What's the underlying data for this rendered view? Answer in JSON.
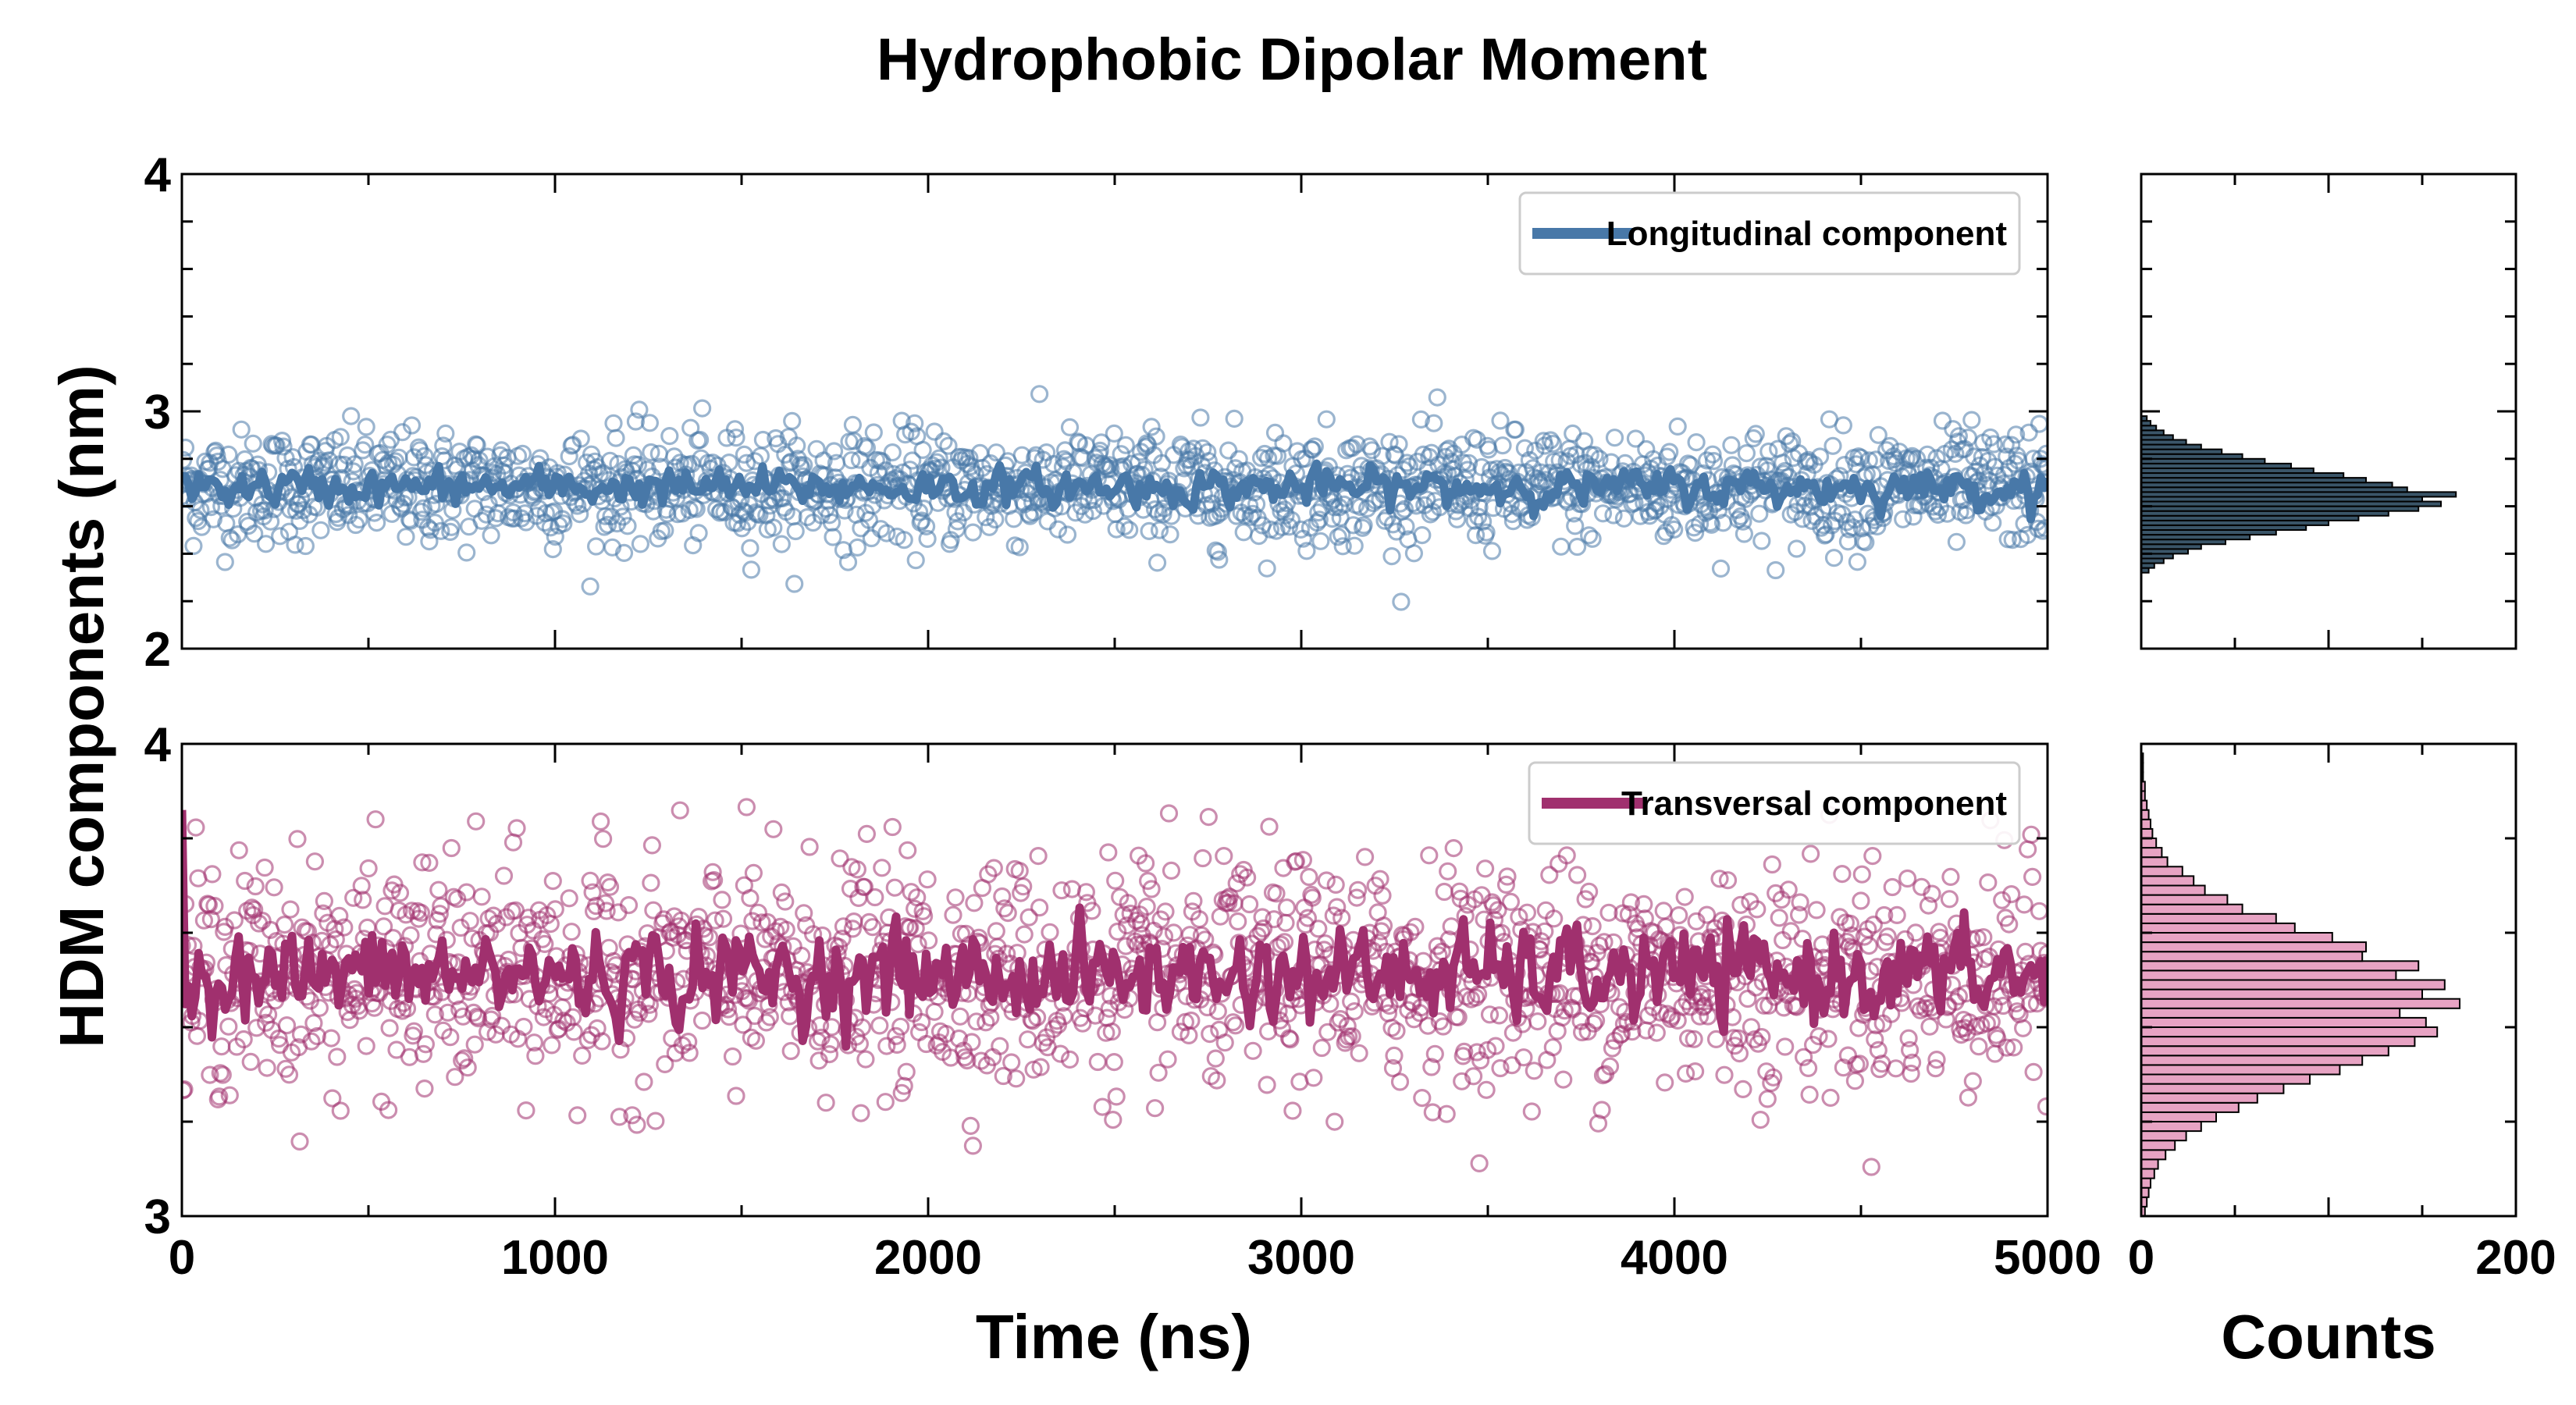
{
  "chart_data": {
    "title": "Hydrophobic Dipolar Moment",
    "ylabel": "HDM components (nm)",
    "panels": [
      {
        "kind": "scatter-line",
        "name": "longitudinal",
        "legend": "Longitudinal component",
        "legend_position": "top-right",
        "color": "#4878a8",
        "xlim": [
          0,
          5000
        ],
        "ylim": [
          2,
          4
        ],
        "yticks": [
          "2",
          "3",
          "4"
        ],
        "xticks": [],
        "xlabel": "",
        "mean": 2.68,
        "scatter_sd": 0.12,
        "smooth_sd": 0.035,
        "n_points": 1600
      },
      {
        "kind": "scatter-line",
        "name": "transversal",
        "legend": "Transversal component",
        "legend_position": "top-right",
        "color": "#a0306e",
        "xlim": [
          0,
          5000
        ],
        "ylim": [
          3,
          4
        ],
        "yticks": [
          "3",
          "4"
        ],
        "xticks": [
          "0",
          "1000",
          "2000",
          "3000",
          "4000",
          "5000"
        ],
        "xlabel": "Time (ns)",
        "mean": 3.51,
        "scatter_sd": 0.12,
        "smooth_sd": 0.045,
        "n_points": 1600
      }
    ],
    "histograms": [
      {
        "name": "longitudinal-hist",
        "color": "#3a5568",
        "ylim": [
          2,
          4
        ],
        "xlim": [
          0,
          200
        ],
        "bins": [
          [
            2.33,
            4
          ],
          [
            2.35,
            7
          ],
          [
            2.37,
            12
          ],
          [
            2.39,
            17
          ],
          [
            2.41,
            25
          ],
          [
            2.43,
            32
          ],
          [
            2.45,
            45
          ],
          [
            2.47,
            58
          ],
          [
            2.49,
            72
          ],
          [
            2.51,
            88
          ],
          [
            2.53,
            100
          ],
          [
            2.55,
            116
          ],
          [
            2.57,
            132
          ],
          [
            2.59,
            148
          ],
          [
            2.61,
            160
          ],
          [
            2.63,
            150
          ],
          [
            2.65,
            168
          ],
          [
            2.67,
            142
          ],
          [
            2.69,
            134
          ],
          [
            2.71,
            120
          ],
          [
            2.73,
            108
          ],
          [
            2.75,
            92
          ],
          [
            2.77,
            80
          ],
          [
            2.79,
            66
          ],
          [
            2.81,
            54
          ],
          [
            2.83,
            43
          ],
          [
            2.85,
            32
          ],
          [
            2.87,
            24
          ],
          [
            2.89,
            17
          ],
          [
            2.91,
            12
          ],
          [
            2.93,
            8
          ],
          [
            2.95,
            5
          ],
          [
            2.97,
            3
          ]
        ]
      },
      {
        "name": "transversal-hist",
        "color": "#e7a3c3",
        "ylim": [
          3,
          4
        ],
        "xlim": [
          0,
          200
        ],
        "xticks": [
          "0",
          "200"
        ],
        "xlabel": "Counts",
        "bins": [
          [
            3.01,
            2
          ],
          [
            3.03,
            3
          ],
          [
            3.05,
            4
          ],
          [
            3.07,
            5
          ],
          [
            3.09,
            7
          ],
          [
            3.11,
            9
          ],
          [
            3.13,
            13
          ],
          [
            3.15,
            18
          ],
          [
            3.17,
            24
          ],
          [
            3.19,
            32
          ],
          [
            3.21,
            40
          ],
          [
            3.23,
            52
          ],
          [
            3.25,
            62
          ],
          [
            3.27,
            76
          ],
          [
            3.29,
            90
          ],
          [
            3.31,
            106
          ],
          [
            3.33,
            118
          ],
          [
            3.35,
            132
          ],
          [
            3.37,
            146
          ],
          [
            3.39,
            158
          ],
          [
            3.41,
            152
          ],
          [
            3.43,
            138
          ],
          [
            3.45,
            170
          ],
          [
            3.47,
            150
          ],
          [
            3.49,
            162
          ],
          [
            3.51,
            136
          ],
          [
            3.53,
            148
          ],
          [
            3.55,
            118
          ],
          [
            3.57,
            120
          ],
          [
            3.59,
            102
          ],
          [
            3.61,
            82
          ],
          [
            3.63,
            72
          ],
          [
            3.65,
            54
          ],
          [
            3.67,
            46
          ],
          [
            3.69,
            34
          ],
          [
            3.71,
            28
          ],
          [
            3.73,
            22
          ],
          [
            3.75,
            14
          ],
          [
            3.77,
            11
          ],
          [
            3.79,
            8
          ],
          [
            3.81,
            6
          ],
          [
            3.83,
            5
          ],
          [
            3.85,
            4
          ],
          [
            3.87,
            3
          ],
          [
            3.89,
            2
          ],
          [
            3.91,
            2
          ],
          [
            3.93,
            1
          ],
          [
            3.95,
            1
          ],
          [
            3.97,
            1
          ]
        ]
      }
    ]
  }
}
